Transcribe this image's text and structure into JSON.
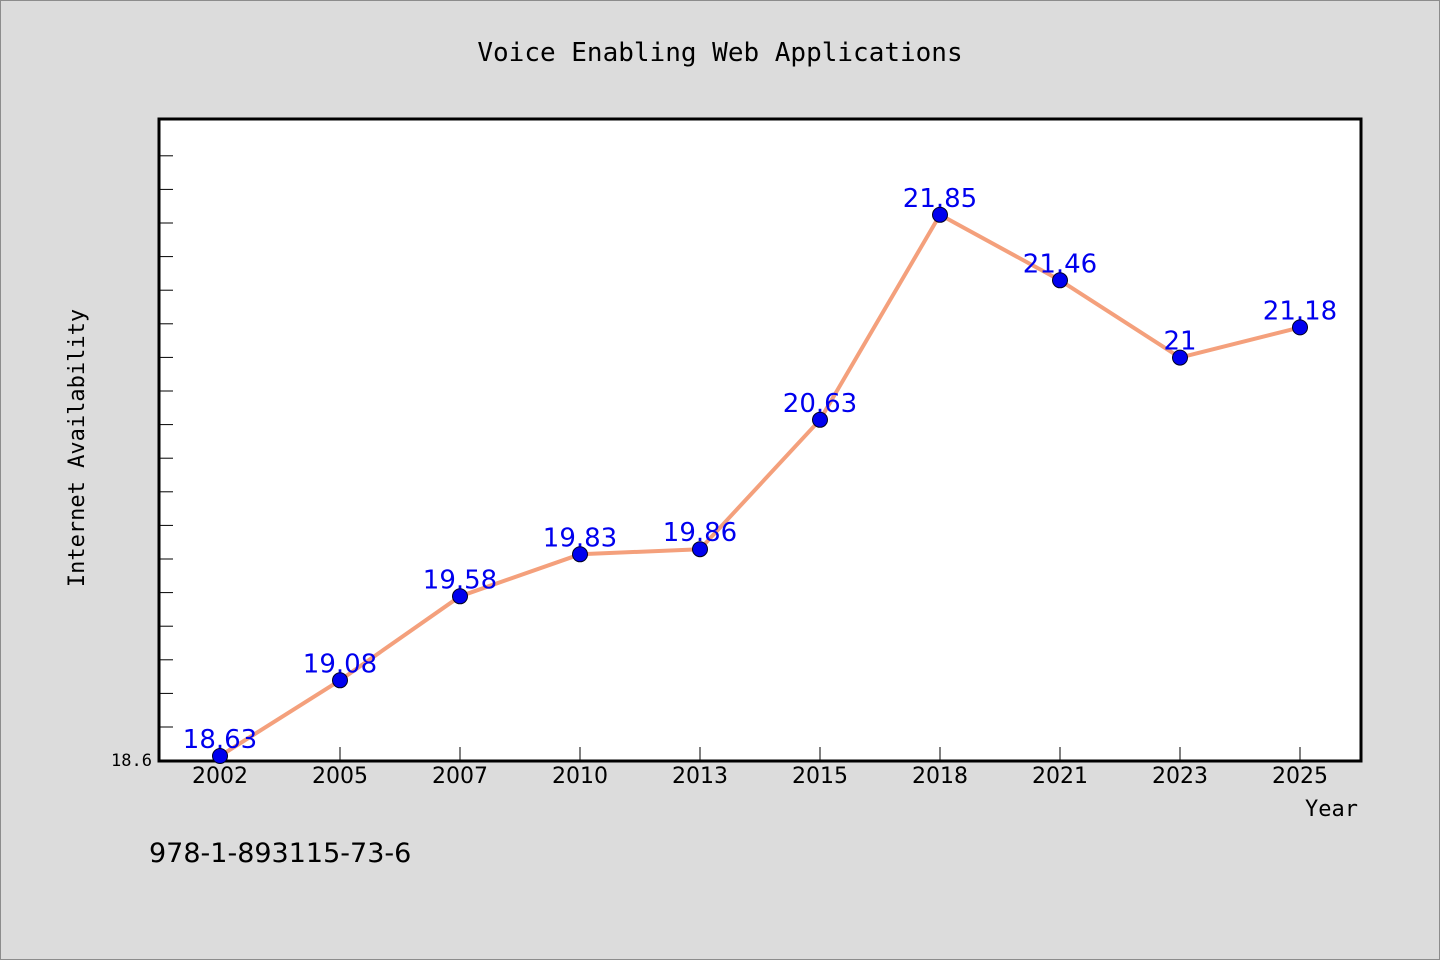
{
  "chart_data": {
    "type": "line",
    "title": "Voice Enabling Web Applications",
    "xlabel": "Year",
    "ylabel": "Internet Availability",
    "categories": [
      "2002",
      "2005",
      "2007",
      "2010",
      "2013",
      "2015",
      "2018",
      "2021",
      "2023",
      "2025"
    ],
    "values": [
      18.63,
      19.08,
      19.58,
      19.83,
      19.86,
      20.63,
      21.85,
      21.46,
      21.0,
      21.18
    ],
    "data_labels": [
      "18.63",
      "19.08",
      "19.58",
      "19.83",
      "19.86",
      "20.63",
      "21.85",
      "21.46",
      "21",
      "21.18"
    ],
    "y_tick_label": "18.6",
    "ylim": [
      18.6,
      22.42
    ],
    "grid": false,
    "line_color": "#f4a07c",
    "marker_color": "#0000ee",
    "label_color": "#0000ee"
  },
  "footer": {
    "isbn": "978-1-893115-73-6"
  }
}
